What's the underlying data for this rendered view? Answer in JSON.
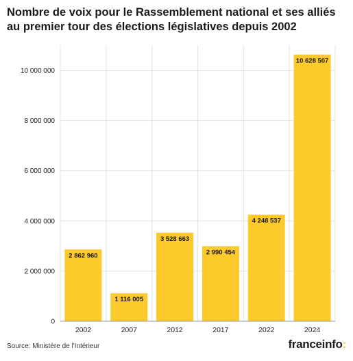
{
  "header": {
    "title": "Nombre de voix pour le Rassemblement national et ses alliés au premier tour des élections législatives depuis 2002"
  },
  "footer": {
    "source": "Source: Ministère de l'Intérieur",
    "brand": "franceinfo",
    "brand_suffix": ":"
  },
  "colors": {
    "bar": "#fdca2b",
    "grid": "#e3e3e3",
    "axis": "#9a9a9a",
    "text": "#222222"
  },
  "chart_data": {
    "type": "bar",
    "title": "Nombre de voix pour le Rassemblement national et ses alliés au premier tour des élections législatives depuis 2002",
    "xlabel": "",
    "ylabel": "",
    "categories": [
      "2002",
      "2007",
      "2012",
      "2017",
      "2022",
      "2024"
    ],
    "values": [
      2862960,
      1116005,
      3528663,
      2990454,
      4248537,
      10628507
    ],
    "data_labels": [
      "2 862 960",
      "1 116 005",
      "3 528 663",
      "2 990 454",
      "4 248 537",
      "10 628 507"
    ],
    "ylim": [
      0,
      11000000
    ],
    "yticks": [
      0,
      2000000,
      4000000,
      6000000,
      8000000,
      10000000
    ],
    "ytick_labels": [
      "0",
      "2 000 000",
      "4 000 000",
      "6 000 000",
      "8 000 000",
      "10 000 000"
    ],
    "grid": true,
    "legend": "none"
  }
}
